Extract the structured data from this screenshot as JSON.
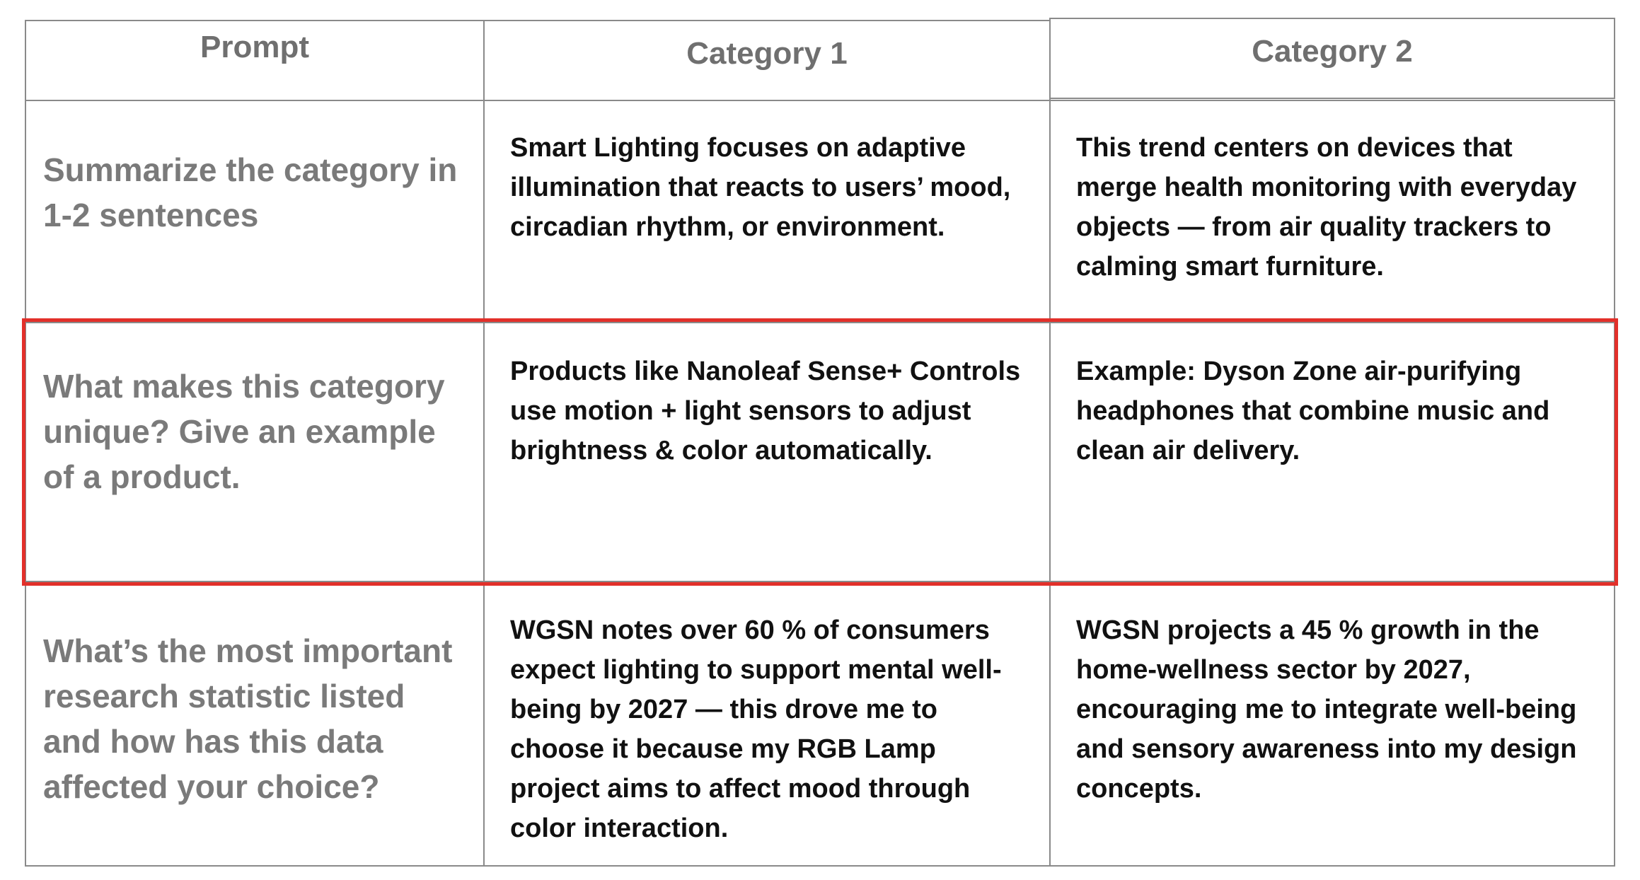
{
  "table": {
    "headers": [
      "Prompt",
      "Category 1",
      "Category 2"
    ],
    "rows": [
      {
        "prompt": "Summarize the category in 1-2 sentences",
        "category_1": "Smart Lighting focuses on adaptive illumination that reacts to users’ mood, circadian rhythm, or environment.",
        "category_2": "This trend centers on devices that merge health monitoring with everyday objects — from air quality trackers to calming smart furniture."
      },
      {
        "prompt": "What makes this category unique? Give an example of a product.",
        "category_1": "Products like Nanoleaf Sense+ Controls use motion + light sensors to adjust brightness & color automatically.",
        "category_2": "Example: Dyson Zone air-purifying headphones that combine music and clean air delivery."
      },
      {
        "prompt": "What’s the most important research statistic listed and how has this data affected your choice?",
        "category_1": "WGSN notes over 60 % of consumers expect lighting to support mental well-being by 2027 — this drove me to choose it because my RGB Lamp project aims to affect mood through color interaction.",
        "category_2": "WGSN projects a 45 % growth in the home-wellness sector by 2027, encouraging me to integrate well-being and sensory awareness into my design concepts."
      }
    ]
  },
  "colors": {
    "border": "#8a8a8a",
    "highlight": "#e2302a",
    "prompt_text": "#7a7a7a",
    "answer_text": "#111111"
  }
}
